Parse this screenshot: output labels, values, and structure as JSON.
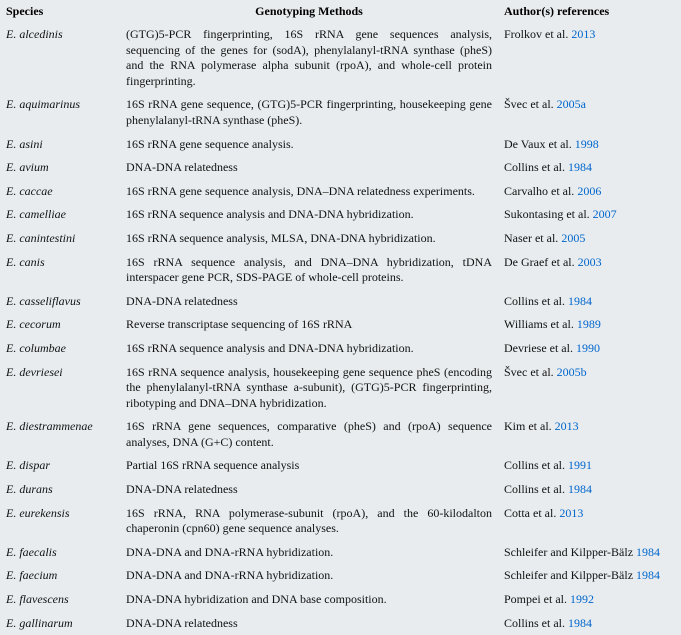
{
  "headers": {
    "species": "Species",
    "methods": "Genotyping  Methods",
    "authors": "Author(s) references"
  },
  "rows": [
    {
      "species": "E. alcedinis",
      "methods": "(GTG)5-PCR fingerprinting, 16S rRNA gene sequences analysis, sequencing of the genes for (sodA), phenylalanyl-tRNA synthase (pheS) and the RNA polymerase alpha subunit (rpoA), and whole-cell protein fingerprinting.",
      "author": "Frolkov et al.",
      "year": "2013"
    },
    {
      "species": "E. aquimarinus",
      "methods": "16S rRNA gene sequence, (GTG)5-PCR fingerprinting, housekeeping gene phenylalanyl-tRNA synthase (pheS).",
      "author": "Švec et al.",
      "year": "2005a"
    },
    {
      "species": "E. asini",
      "methods": "16S rRNA gene sequence analysis.",
      "author": "De Vaux et al.",
      "year": "1998"
    },
    {
      "species": "E. avium",
      "methods": "DNA-DNA relatedness",
      "author": "Collins et al.",
      "year": "1984"
    },
    {
      "species": "E. caccae",
      "methods": "16S rRNA gene sequence analysis, DNA–DNA relatedness experiments.",
      "author": "Carvalho et al.",
      "year": "2006"
    },
    {
      "species": "E. camelliae",
      "methods": "16S rRNA sequence analysis and DNA-DNA hybridization.",
      "author": "Sukontasing et al.",
      "year": "2007"
    },
    {
      "species": "E. canintestini",
      "methods": "16S rRNA sequence analysis, MLSA, DNA-DNA hybridization.",
      "author": "Naser et al.",
      "year": "2005"
    },
    {
      "species": "E. canis",
      "methods": "16S rRNA sequence analysis, and DNA–DNA hybridization, tDNA interspacer gene PCR, SDS-PAGE of whole-cell proteins.",
      "author": "De Graef et al.",
      "year": "2003"
    },
    {
      "species": "E. casseliflavus",
      "methods": "DNA-DNA relatedness",
      "author": "Collins et al.",
      "year": "1984"
    },
    {
      "species": "E. cecorum",
      "methods": "Reverse transcriptase sequencing of 16S rRNA",
      "author": "Williams et al.",
      "year": "1989"
    },
    {
      "species": "E. columbae",
      "methods": "16S rRNA sequence analysis and DNA-DNA hybridization.",
      "author": "Devriese et al.",
      "year": "1990"
    },
    {
      "species": "E. devriesei",
      "methods": "16S rRNA sequence analysis, housekeeping gene sequence pheS (encoding the phenylalanyl-tRNA synthase a-subunit), (GTG)5-PCR fingerprinting, ribotyping and DNA–DNA hybridization.",
      "author": "Švec et al.",
      "year": "2005b"
    },
    {
      "species": "E. diestrammenae",
      "methods": "16S rRNA gene sequences, comparative (pheS) and (rpoA) sequence analyses, DNA (G+C) content.",
      "author": "Kim et al.",
      "year": "2013"
    },
    {
      "species": "E. dispar",
      "methods": "Partial 16S rRNA sequence analysis",
      "author": "Collins et al.",
      "year": "1991"
    },
    {
      "species": "E. durans",
      "methods": "DNA-DNA relatedness",
      "author": "Collins et al.",
      "year": "1984"
    },
    {
      "species": "E. eurekensis",
      "methods": "16S rRNA, RNA polymerase-subunit (rpoA), and the 60-kilodalton chaperonin (cpn60) gene sequence analyses.",
      "author": "Cotta et al.",
      "year": "2013"
    },
    {
      "species": "E. faecalis",
      "methods": "DNA-DNA and DNA-rRNA hybridization.",
      "author": "Schleifer and Kilpper-Bälz",
      "year": "1984"
    },
    {
      "species": "E. faecium",
      "methods": "DNA-DNA and DNA-rRNA hybridization.",
      "author": "Schleifer and Kilpper-Bälz",
      "year": "1984"
    },
    {
      "species": "E. flavescens",
      "methods": "DNA-DNA hybridization and DNA base composition.",
      "author": "Pompei et al.",
      "year": "1992"
    },
    {
      "species": "E. gallinarum",
      "methods": "DNA-DNA relatedness",
      "author": "Collins et al.",
      "year": "1984"
    }
  ]
}
